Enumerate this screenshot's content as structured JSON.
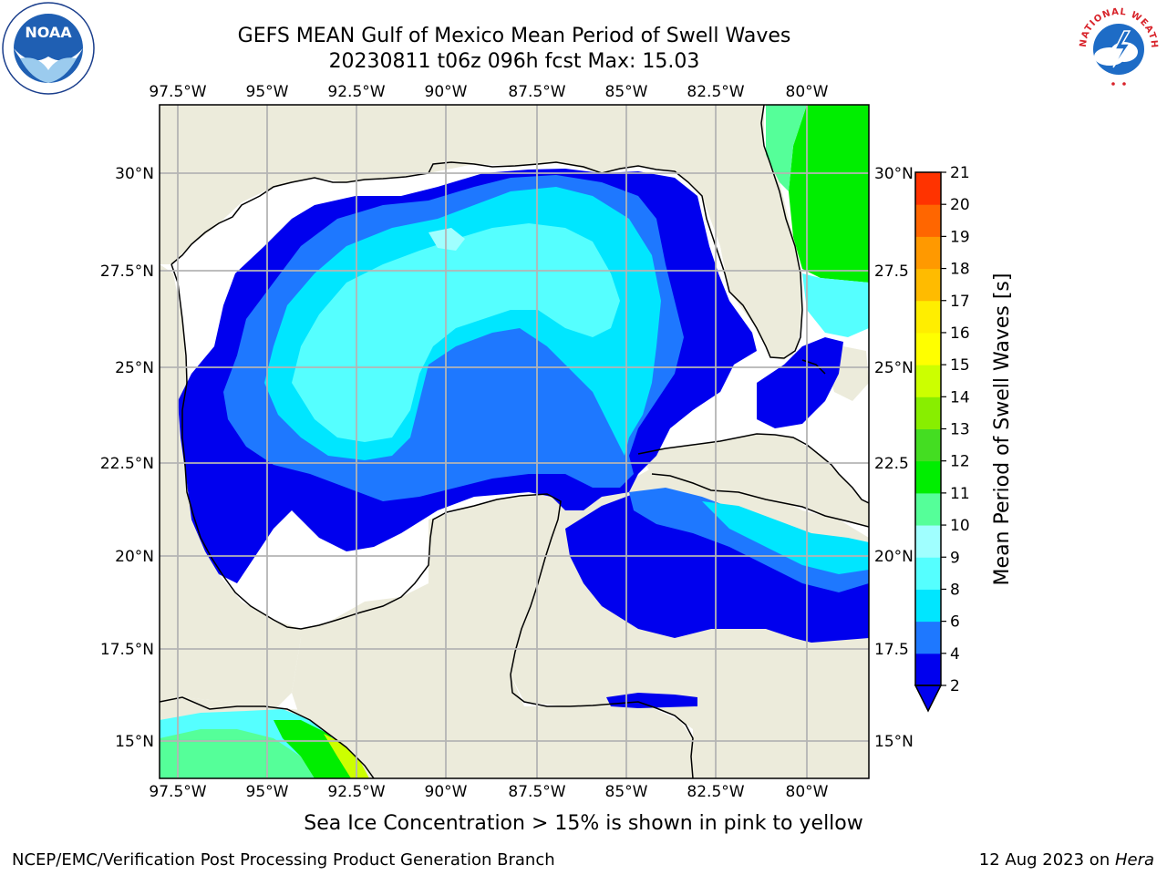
{
  "header": {
    "title_line1": "GEFS MEAN Gulf of Mexico Mean Period of Swell Waves",
    "title_line2": "20230811 t06z 096h fcst   Max: 15.03"
  },
  "logos": {
    "left": "NOAA",
    "right": "NATIONAL WEATHER SERVICE"
  },
  "map": {
    "lon_labels": [
      "97.5°W",
      "95°W",
      "92.5°W",
      "90°W",
      "87.5°W",
      "85°W",
      "82.5°W",
      "80°W"
    ],
    "lat_labels_left": [
      "30°N",
      "27.5°N",
      "25°N",
      "22.5°N",
      "20°N",
      "17.5°N",
      "15°N"
    ],
    "lat_labels_right": [
      "30°N",
      "27.5",
      "25°N",
      "22.5",
      "20°N",
      "17.5",
      "15°N"
    ],
    "colors": {
      "land": "#ecebdb",
      "ocean_unfilled": "#ffffff",
      "grid": "#b4b4b4"
    }
  },
  "colorbar": {
    "label": "Mean Period of Swell Waves [s]",
    "ticks": [
      "2",
      "4",
      "6",
      "8",
      "9",
      "10",
      "11",
      "12",
      "13",
      "14",
      "15",
      "16",
      "17",
      "18",
      "19",
      "20",
      "21"
    ],
    "colors": [
      "#0000ee",
      "#1e78ff",
      "#00e6ff",
      "#55ffff",
      "#a0ffff",
      "#55ff99",
      "#00ee00",
      "#44dd22",
      "#88ee00",
      "#ccff00",
      "#ffff00",
      "#ffee00",
      "#ffbb00",
      "#ff9900",
      "#ff6600",
      "#ff3300",
      "#ff0000"
    ]
  },
  "note": "Sea Ice Concentration > 15% is shown in pink to yellow",
  "footer": {
    "left": "NCEP/EMC/Verification Post Processing Product Generation Branch",
    "right_date": "12 Aug 2023 on ",
    "right_host": "Hera"
  }
}
